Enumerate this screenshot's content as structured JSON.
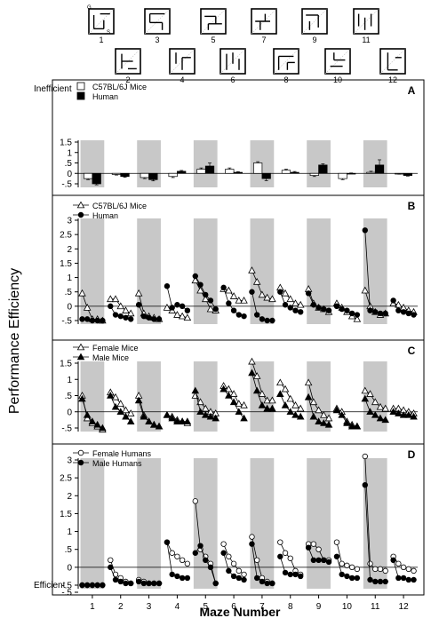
{
  "figure": {
    "y_label": "Performance Efficiency",
    "x_label": "Maze Number",
    "inefficient_label": "Inefficient",
    "efficient_label": "Efficient",
    "maze_number_labels": [
      "1",
      "2",
      "3",
      "4",
      "5",
      "6",
      "7",
      "8",
      "9",
      "10",
      "11",
      "12"
    ],
    "maze_markers": {
      "goal": "G",
      "start": "S"
    },
    "colors": {
      "shade": "#c8c8c8",
      "axis": "#000000",
      "open": "#ffffff",
      "filled": "#000000"
    }
  },
  "chart_data": [
    {
      "type": "bar",
      "panel_label": "A",
      "categories": [
        "1",
        "2",
        "3",
        "4",
        "5",
        "6",
        "7",
        "8",
        "9",
        "10",
        "11",
        "12"
      ],
      "ylim": [
        -0.6,
        1.5
      ],
      "yticks": [
        "1.5",
        "1",
        ".5",
        "0",
        "-.5"
      ],
      "shaded_categories": [
        "1",
        "3",
        "5",
        "7",
        "9",
        "11"
      ],
      "series": [
        {
          "name": "C57BL/6J Mice",
          "style": "open",
          "values": [
            -0.25,
            -0.05,
            -0.2,
            -0.15,
            0.2,
            0.2,
            0.5,
            0.15,
            -0.1,
            -0.25,
            0.05,
            -0.02
          ],
          "errors": [
            0.05,
            0.03,
            0.05,
            0.05,
            0.06,
            0.06,
            0.06,
            0.05,
            0.05,
            0.05,
            0.05,
            0.02
          ]
        },
        {
          "name": "Human",
          "style": "filled",
          "values": [
            -0.5,
            -0.15,
            -0.3,
            0.1,
            0.35,
            0.05,
            -0.25,
            0.05,
            0.4,
            0.0,
            0.4,
            -0.1
          ],
          "errors": [
            0.05,
            0.04,
            0.06,
            0.04,
            0.15,
            0.03,
            0.1,
            0.04,
            0.06,
            0.02,
            0.25,
            0.03
          ]
        }
      ]
    },
    {
      "type": "line",
      "panel_label": "B",
      "ylim": [
        -0.7,
        3.0
      ],
      "yticks": [
        "3",
        "2.5",
        "2",
        "1.5",
        "1",
        ".5",
        "0",
        "-.5"
      ],
      "shaded_categories": [
        "1",
        "3",
        "5",
        "7",
        "9",
        "11"
      ],
      "series": [
        {
          "name": "C57BL/6J Mice",
          "style": "open-triangle",
          "trials": [
            [
              0.45,
              -0.05,
              -0.45,
              -0.45,
              -0.5
            ],
            [
              0.25,
              0.25,
              0.0,
              -0.15,
              -0.25
            ],
            [
              0.45,
              -0.25,
              -0.35,
              -0.4,
              -0.45
            ],
            [
              -0.05,
              -0.15,
              -0.3,
              -0.35,
              -0.4
            ],
            [
              0.9,
              0.55,
              0.25,
              -0.1,
              -0.15
            ],
            [
              0.6,
              0.55,
              0.35,
              0.2,
              0.2
            ],
            [
              1.25,
              0.85,
              0.4,
              0.3,
              0.25
            ],
            [
              0.65,
              0.45,
              0.25,
              0.1,
              0.05
            ],
            [
              0.6,
              0.1,
              -0.05,
              -0.1,
              -0.2
            ],
            [
              0.1,
              -0.05,
              -0.2,
              -0.35,
              -0.45
            ],
            [
              0.55,
              0.0,
              -0.2,
              -0.3,
              -0.25
            ],
            [
              0.1,
              0.05,
              -0.05,
              -0.15,
              -0.2
            ]
          ]
        },
        {
          "name": "Human",
          "style": "filled-circle",
          "trials": [
            [
              -0.45,
              -0.45,
              -0.5,
              -0.5,
              -0.5
            ],
            [
              0.0,
              -0.3,
              -0.35,
              -0.4,
              -0.45
            ],
            [
              0.05,
              -0.35,
              -0.4,
              -0.45,
              -0.45
            ],
            [
              0.7,
              -0.05,
              0.05,
              0.0,
              -0.15
            ],
            [
              1.05,
              0.75,
              0.4,
              0.2,
              -0.1
            ],
            [
              0.65,
              0.1,
              -0.15,
              -0.3,
              -0.35
            ],
            [
              0.5,
              -0.3,
              -0.45,
              -0.5,
              -0.5
            ],
            [
              0.5,
              0.05,
              -0.05,
              -0.15,
              -0.2
            ],
            [
              0.45,
              0.05,
              -0.05,
              -0.1,
              -0.15
            ],
            [
              0.0,
              -0.1,
              -0.15,
              -0.25,
              -0.3
            ],
            [
              2.65,
              -0.15,
              -0.2,
              -0.25,
              -0.25
            ],
            [
              0.2,
              -0.15,
              -0.2,
              -0.25,
              -0.3
            ]
          ]
        }
      ]
    },
    {
      "type": "line",
      "panel_label": "C",
      "ylim": [
        -0.7,
        1.6
      ],
      "yticks": [
        "1.5",
        "1",
        ".5",
        "0",
        "-.5"
      ],
      "shaded_categories": [
        "1",
        "3",
        "5",
        "7",
        "9",
        "11"
      ],
      "series": [
        {
          "name": "Female Mice",
          "style": "open-triangle",
          "trials": [
            [
              0.5,
              -0.2,
              -0.35,
              -0.45,
              -0.55
            ],
            [
              0.6,
              0.45,
              0.25,
              0.05,
              -0.05
            ],
            [
              0.5,
              -0.1,
              -0.3,
              -0.4,
              -0.45
            ],
            [
              -0.1,
              -0.15,
              -0.25,
              -0.3,
              -0.35
            ],
            [
              0.5,
              0.3,
              0.1,
              0.0,
              -0.05
            ],
            [
              0.8,
              0.7,
              0.55,
              0.25,
              0.2
            ],
            [
              1.55,
              1.1,
              0.55,
              0.35,
              0.35
            ],
            [
              0.9,
              0.7,
              0.4,
              0.2,
              0.1
            ],
            [
              0.9,
              0.3,
              0.05,
              -0.1,
              -0.2
            ],
            [
              0.1,
              0.0,
              -0.3,
              -0.4,
              -0.45
            ],
            [
              0.65,
              0.55,
              0.3,
              0.15,
              0.1
            ],
            [
              0.1,
              0.1,
              0.05,
              0.0,
              -0.05
            ]
          ]
        },
        {
          "name": "Male Mice",
          "style": "filled-triangle",
          "trials": [
            [
              0.4,
              -0.1,
              -0.3,
              -0.4,
              -0.5
            ],
            [
              0.5,
              0.15,
              0.0,
              -0.15,
              -0.3
            ],
            [
              0.35,
              -0.15,
              -0.3,
              -0.4,
              -0.45
            ],
            [
              -0.1,
              -0.2,
              -0.3,
              -0.3,
              -0.3
            ],
            [
              0.65,
              0.0,
              -0.1,
              -0.15,
              -0.2
            ],
            [
              0.7,
              0.5,
              0.3,
              0.0,
              -0.2
            ],
            [
              1.2,
              0.65,
              0.2,
              0.1,
              0.1
            ],
            [
              0.55,
              0.2,
              0.0,
              -0.1,
              -0.15
            ],
            [
              0.45,
              -0.15,
              -0.3,
              -0.35,
              -0.4
            ],
            [
              0.05,
              -0.1,
              -0.35,
              -0.45,
              -0.45
            ],
            [
              0.4,
              0.0,
              -0.1,
              -0.2,
              -0.25
            ],
            [
              0.0,
              -0.05,
              -0.1,
              -0.1,
              -0.15
            ]
          ]
        }
      ]
    },
    {
      "type": "line",
      "panel_label": "D",
      "ylim": [
        -0.7,
        3.2
      ],
      "yticks": [
        "3",
        "2.5",
        "2",
        "1.5",
        "1",
        ".5",
        "0",
        "-.5",
        "-.5"
      ],
      "shaded_categories": [
        "1",
        "3",
        "5",
        "7",
        "9",
        "11"
      ],
      "series": [
        {
          "name": "Female Humans",
          "style": "open-circle",
          "trials": [
            [
              -0.5,
              -0.5,
              -0.5,
              -0.5,
              -0.5
            ],
            [
              0.2,
              -0.2,
              -0.3,
              -0.4,
              -0.45
            ],
            [
              -0.35,
              -0.4,
              -0.45,
              -0.45,
              -0.45
            ],
            [
              0.7,
              0.4,
              0.3,
              0.2,
              0.1
            ],
            [
              1.85,
              0.5,
              0.3,
              0.1,
              -0.45
            ],
            [
              0.65,
              0.3,
              0.1,
              -0.1,
              -0.2
            ],
            [
              0.85,
              0.2,
              -0.3,
              -0.4,
              -0.45
            ],
            [
              0.7,
              0.4,
              0.25,
              -0.1,
              -0.2
            ],
            [
              0.65,
              0.65,
              0.5,
              0.2,
              0.2
            ],
            [
              0.7,
              0.1,
              0.05,
              0.0,
              -0.05
            ],
            [
              3.1,
              0.1,
              -0.05,
              -0.05,
              -0.1
            ],
            [
              0.3,
              0.1,
              0.0,
              -0.05,
              -0.1
            ]
          ]
        },
        {
          "name": "Male Humans",
          "style": "filled-circle",
          "trials": [
            [
              -0.5,
              -0.5,
              -0.5,
              -0.5,
              -0.5
            ],
            [
              0.0,
              -0.35,
              -0.4,
              -0.45,
              -0.45
            ],
            [
              -0.4,
              -0.45,
              -0.45,
              -0.45,
              -0.45
            ],
            [
              0.7,
              -0.2,
              -0.25,
              -0.3,
              -0.3
            ],
            [
              0.4,
              0.6,
              0.2,
              0.0,
              -0.45
            ],
            [
              0.4,
              -0.1,
              -0.25,
              -0.3,
              -0.35
            ],
            [
              0.65,
              -0.3,
              -0.4,
              -0.45,
              -0.45
            ],
            [
              0.3,
              -0.15,
              -0.2,
              -0.2,
              -0.25
            ],
            [
              0.55,
              0.2,
              0.2,
              0.2,
              0.15
            ],
            [
              0.3,
              -0.2,
              -0.25,
              -0.3,
              -0.3
            ],
            [
              2.3,
              -0.35,
              -0.4,
              -0.4,
              -0.4
            ],
            [
              0.2,
              -0.3,
              -0.3,
              -0.35,
              -0.35
            ]
          ]
        }
      ]
    }
  ]
}
